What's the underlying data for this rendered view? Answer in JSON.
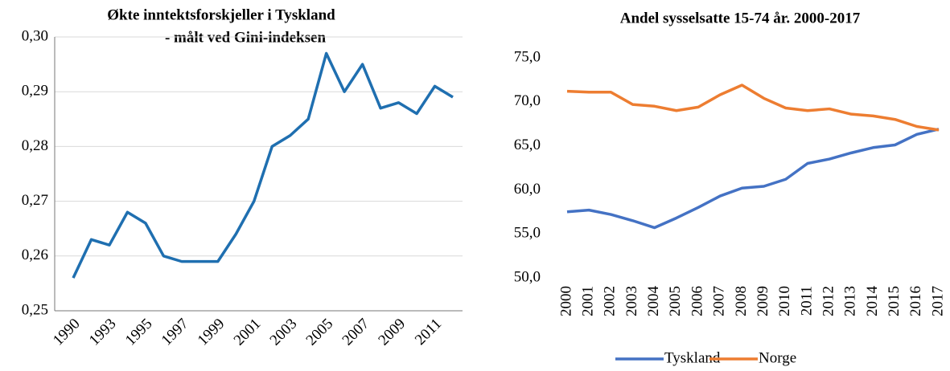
{
  "chart_data": [
    {
      "type": "line",
      "title": "Økte inntektsforskjeller i Tyskland",
      "subtitle": "- målt ved Gini-indeksen",
      "categories": [
        "1990",
        null,
        "1993",
        null,
        "1995",
        null,
        "1997",
        null,
        "1999",
        null,
        "2001",
        null,
        "2003",
        null,
        "2005",
        null,
        "2007",
        null,
        "2009",
        null,
        "2011",
        null
      ],
      "series": [
        {
          "name": "Gini",
          "color": "#1f6fb0",
          "values": [
            0.256,
            0.263,
            0.262,
            0.268,
            0.266,
            0.26,
            0.259,
            0.259,
            0.259,
            0.264,
            0.27,
            0.28,
            0.282,
            0.285,
            0.297,
            0.29,
            0.295,
            0.287,
            0.288,
            0.286,
            0.291,
            0.289
          ]
        }
      ],
      "ylim": [
        0.25,
        0.3
      ],
      "yticks": [
        {
          "value": 0.25,
          "label": "0,25"
        },
        {
          "value": 0.26,
          "label": "0,26"
        },
        {
          "value": 0.27,
          "label": "0,27"
        },
        {
          "value": 0.28,
          "label": "0,28"
        },
        {
          "value": 0.29,
          "label": "0,29"
        },
        {
          "value": 0.3,
          "label": "0,30"
        }
      ],
      "grid": true,
      "legend": false
    },
    {
      "type": "line",
      "title": "Andel sysselsatte 15-74 år. 2000-2017",
      "categories": [
        "2000",
        "2001",
        "2002",
        "2003",
        "2004",
        "2005",
        "2006",
        "2007",
        "2008",
        "2009",
        "2010",
        "2011",
        "2012",
        "2013",
        "2014",
        "2015",
        "2016",
        "2017"
      ],
      "series": [
        {
          "name": "Tyskland",
          "color": "#4472c4",
          "values": [
            57.5,
            57.7,
            57.2,
            56.5,
            55.7,
            56.8,
            58.0,
            59.3,
            60.2,
            60.4,
            61.2,
            63.0,
            63.5,
            64.2,
            64.8,
            65.1,
            66.3,
            66.9
          ]
        },
        {
          "name": "Norge",
          "color": "#ed7d31",
          "values": [
            71.2,
            71.1,
            71.1,
            69.7,
            69.5,
            69.0,
            69.4,
            70.8,
            71.9,
            70.4,
            69.3,
            69.0,
            69.2,
            68.6,
            68.4,
            68.0,
            67.2,
            66.8
          ]
        }
      ],
      "ylim": [
        50,
        75
      ],
      "yticks": [
        {
          "value": 50,
          "label": "50,0"
        },
        {
          "value": 55,
          "label": "55,0"
        },
        {
          "value": 60,
          "label": "60,0"
        },
        {
          "value": 65,
          "label": "65,0"
        },
        {
          "value": 70,
          "label": "70,0"
        },
        {
          "value": 75,
          "label": "75,0"
        }
      ],
      "grid": false,
      "legend": "bottom"
    }
  ]
}
